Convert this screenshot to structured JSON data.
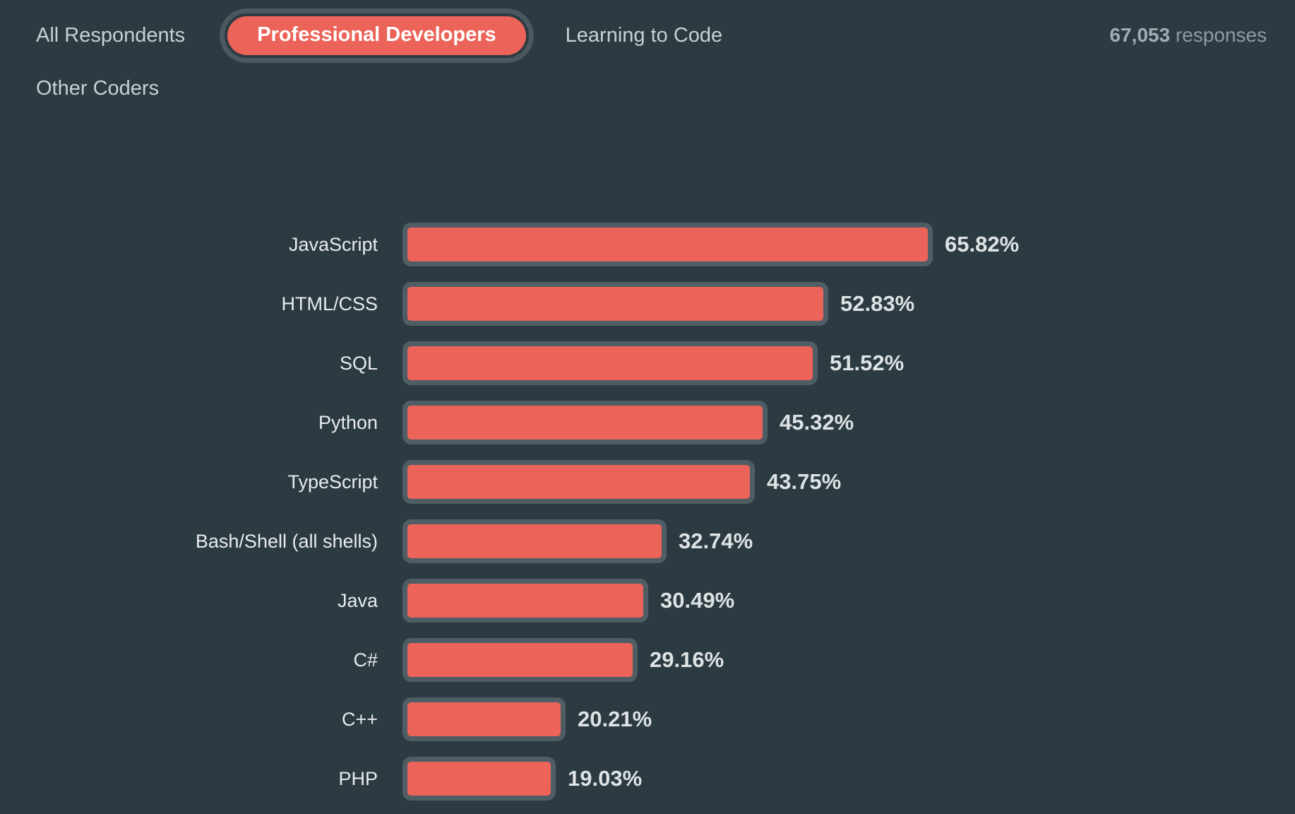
{
  "tabs": [
    {
      "label": "All Respondents",
      "active": false
    },
    {
      "label": "Professional Developers",
      "active": true
    },
    {
      "label": "Learning to Code",
      "active": false
    },
    {
      "label": "Other Coders",
      "active": false
    }
  ],
  "responses": {
    "count": "67,053",
    "label": "responses"
  },
  "colors": {
    "background": "#2c3a42",
    "bar_fill": "#ec6459",
    "bar_border": "#4f5d65",
    "active_tab_fill": "#ec6459",
    "tab_text": "#c8d1d4",
    "label_text": "#e8eced",
    "value_text": "#dee3e4"
  },
  "chart_data": {
    "type": "bar",
    "orientation": "horizontal",
    "title": "",
    "xlabel": "",
    "ylabel": "",
    "grid": false,
    "legend": false,
    "value_format": "percent",
    "xlim": [
      0,
      70
    ],
    "categories": [
      "JavaScript",
      "HTML/CSS",
      "SQL",
      "Python",
      "TypeScript",
      "Bash/Shell (all shells)",
      "Java",
      "C#",
      "C++",
      "PHP"
    ],
    "values": [
      65.82,
      52.83,
      51.52,
      45.32,
      43.75,
      32.74,
      30.49,
      29.16,
      20.21,
      19.03
    ]
  }
}
